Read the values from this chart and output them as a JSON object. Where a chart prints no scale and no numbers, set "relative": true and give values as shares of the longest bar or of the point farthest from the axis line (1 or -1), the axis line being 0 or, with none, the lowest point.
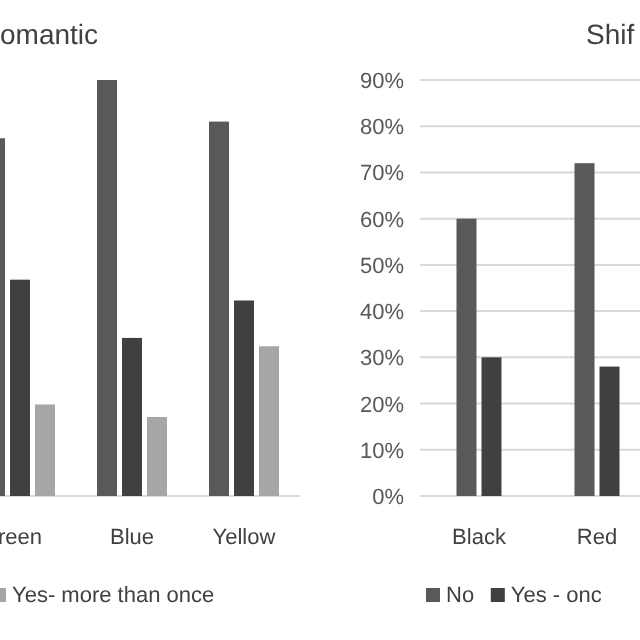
{
  "chart_data": [
    {
      "type": "bar",
      "title": "omantic",
      "categories": [
        "reen",
        "Blue",
        "Yellow"
      ],
      "relative": true,
      "legend": "bottom",
      "series": [
        {
          "color": "#595959",
          "values": [
            0.86,
            1,
            0.9
          ]
        },
        {
          "color": "#404040",
          "values": [
            0.52,
            0.38,
            0.47
          ]
        },
        {
          "name": "Yes- more than once",
          "color": "#a6a6a6",
          "values": [
            0.22,
            0.19,
            0.36
          ]
        }
      ]
    },
    {
      "type": "bar",
      "title": "Shif",
      "categories": [
        "Black",
        "Red"
      ],
      "ylim": [
        0,
        90
      ],
      "grid": "y",
      "legend": "bottom",
      "yticks": [
        {
          "value": 0,
          "label": "0%"
        },
        {
          "value": 10,
          "label": "10%"
        },
        {
          "value": 20,
          "label": "20%"
        },
        {
          "value": 30,
          "label": "30%"
        },
        {
          "value": 40,
          "label": "40%"
        },
        {
          "value": 50,
          "label": "50%"
        },
        {
          "value": 60,
          "label": "60%"
        },
        {
          "value": 70,
          "label": "70%"
        },
        {
          "value": 80,
          "label": "80%"
        },
        {
          "value": 90,
          "label": "90%"
        }
      ],
      "series": [
        {
          "name": "No",
          "color": "#595959",
          "values": [
            60,
            72
          ]
        },
        {
          "name": "Yes - onc",
          "color": "#404040",
          "values": [
            30,
            28
          ]
        }
      ]
    }
  ]
}
